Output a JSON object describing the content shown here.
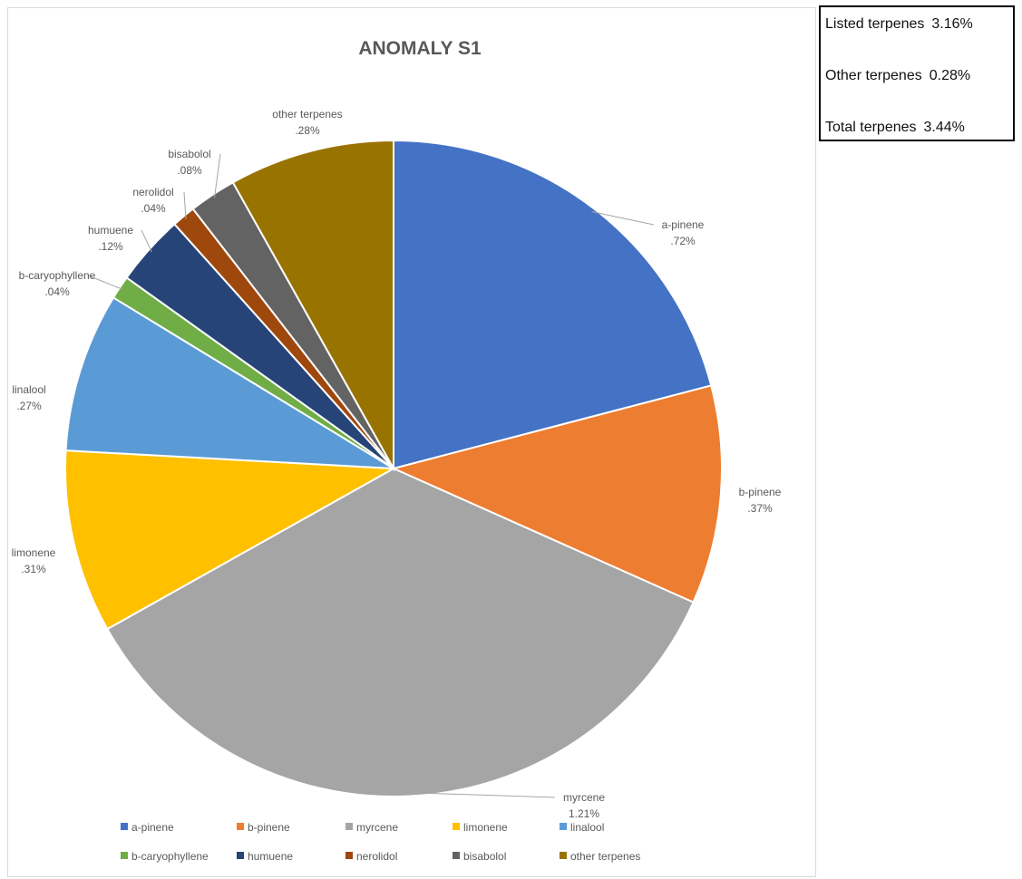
{
  "summary": {
    "rows": [
      {
        "label": "Listed terpenes",
        "value": "3.16%"
      },
      {
        "label": "Other terpenes",
        "value": "0.28%"
      },
      {
        "label": "Total terpenes",
        "value": "3.44%"
      }
    ]
  },
  "chart_data": {
    "type": "pie",
    "title": "ANOMALY S1",
    "legend_position": "bottom",
    "start_angle_deg": 0,
    "direction": "clockwise",
    "slices": [
      {
        "name": "a-pinene",
        "value": 0.72,
        "label": ".72%",
        "color": "#4472C4"
      },
      {
        "name": "b-pinene",
        "value": 0.37,
        "label": ".37%",
        "color": "#ED7D31"
      },
      {
        "name": "myrcene",
        "value": 1.21,
        "label": "1.21%",
        "color": "#A5A5A5"
      },
      {
        "name": "limonene",
        "value": 0.31,
        "label": ".31%",
        "color": "#FFC000"
      },
      {
        "name": "linalool",
        "value": 0.27,
        "label": ".27%",
        "color": "#5B9BD5"
      },
      {
        "name": "b-caryophyllene",
        "value": 0.04,
        "label": ".04%",
        "color": "#70AD47"
      },
      {
        "name": "humuene",
        "value": 0.12,
        "label": ".12%",
        "color": "#264478"
      },
      {
        "name": "nerolidol",
        "value": 0.04,
        "label": ".04%",
        "color": "#9E480E"
      },
      {
        "name": "bisabolol",
        "value": 0.08,
        "label": ".08%",
        "color": "#636363"
      },
      {
        "name": "other terpenes",
        "value": 0.28,
        "label": ".28%",
        "color": "#997300"
      }
    ]
  }
}
